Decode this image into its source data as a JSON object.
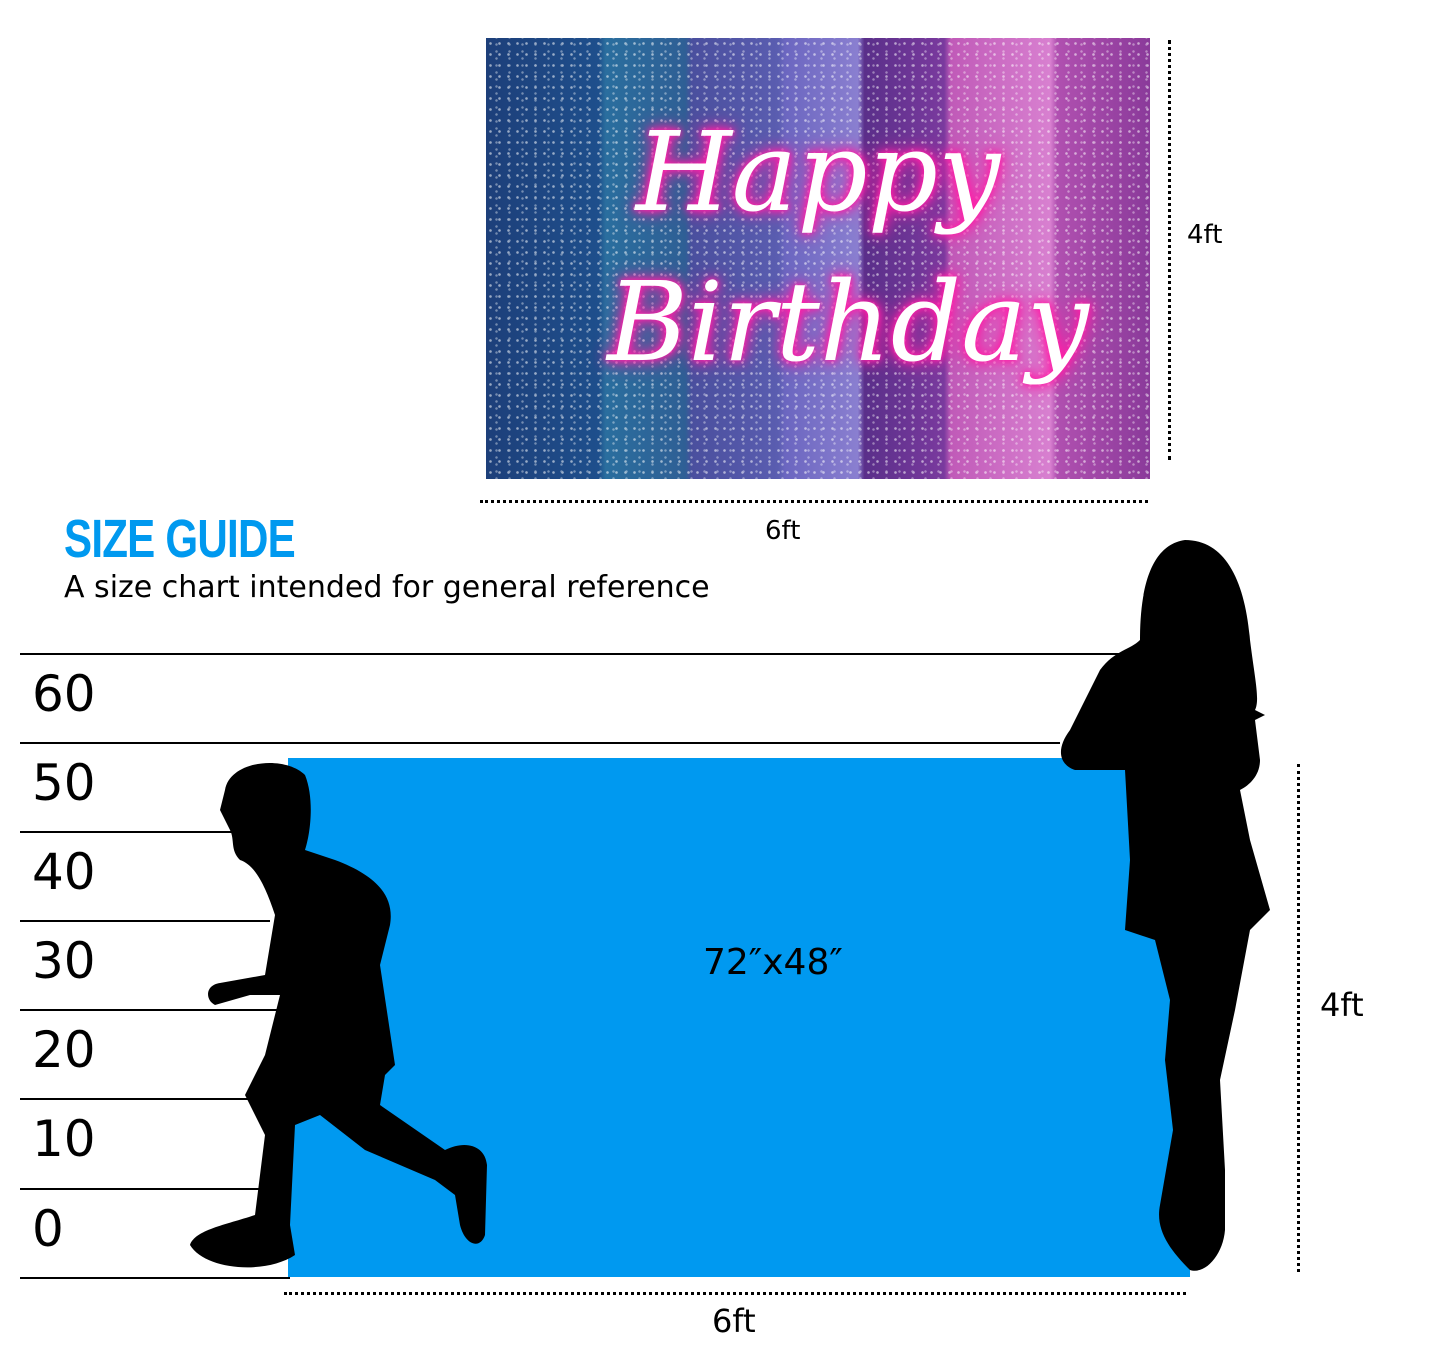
{
  "product": {
    "lettering": [
      "Happy",
      "Birthday"
    ],
    "height_label": "4ft",
    "width_label": "6ft"
  },
  "guide": {
    "title": "SIZE GUIDE",
    "subtitle": "A size chart intended for general reference",
    "accent_color": "#0099f0",
    "scale_ticks": [
      "60",
      "50",
      "40",
      "30",
      "20",
      "10",
      "0"
    ],
    "backdrop_size": "72″x48″",
    "height_label": "4ft",
    "width_label": "6ft",
    "figures": [
      "child-silhouette",
      "woman-silhouette"
    ]
  }
}
